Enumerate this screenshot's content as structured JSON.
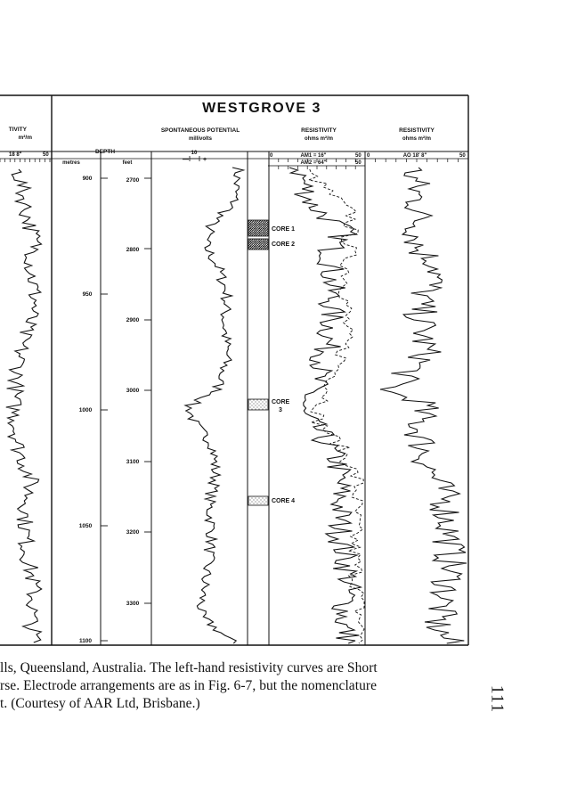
{
  "figure": {
    "well_title": "WESTGROVE 3",
    "left_panel": {
      "header_partial": "TIVITY",
      "units_partial": "m²/m",
      "scale_left": "18 8\"",
      "scale_right": "50"
    },
    "depth_column": {
      "header": "DEPTH",
      "metres_label": "metres",
      "feet_label": "feet",
      "metres_ticks": [
        "900",
        "950",
        "1000",
        "1050",
        "1100"
      ],
      "feet_ticks": [
        "2700",
        "2800",
        "2900",
        "3000",
        "3100",
        "3200",
        "3300"
      ]
    },
    "sp_track": {
      "header": "SPONTANEOUS POTENTIAL",
      "units": "millivolts",
      "scale_value": "10",
      "scale_minus": "—",
      "scale_plus": "+"
    },
    "resistivity_track": {
      "header": "RESISTIVITY",
      "units": "ohms  m²/m",
      "scale_zero": "0",
      "scale_top_right": "50",
      "scale_bottom_right": "50",
      "curve_1_label": "AM1 = 16\"",
      "curve_2_label": "AM2 = 64\""
    },
    "lateral_track": {
      "header": "RESISTIVITY",
      "units": "ohms  m²/m",
      "scale_zero": "0",
      "scale_right": "50",
      "curve_label": "AO 18' 8\""
    },
    "cores": {
      "core1": "CORE 1",
      "core2": "CORE 2",
      "core3_a": "CORE",
      "core3_b": "3",
      "core4": "CORE 4"
    }
  },
  "caption": {
    "line1": "lls, Queensland, Australia. The left-hand resistivity curves are Short",
    "line2": "rse. Electrode arrangements are as in Fig. 6-7, but the nomenclature",
    "line3": "t. (Courtesy of AAR Ltd, Brisbane.)"
  },
  "page_number": "111"
}
